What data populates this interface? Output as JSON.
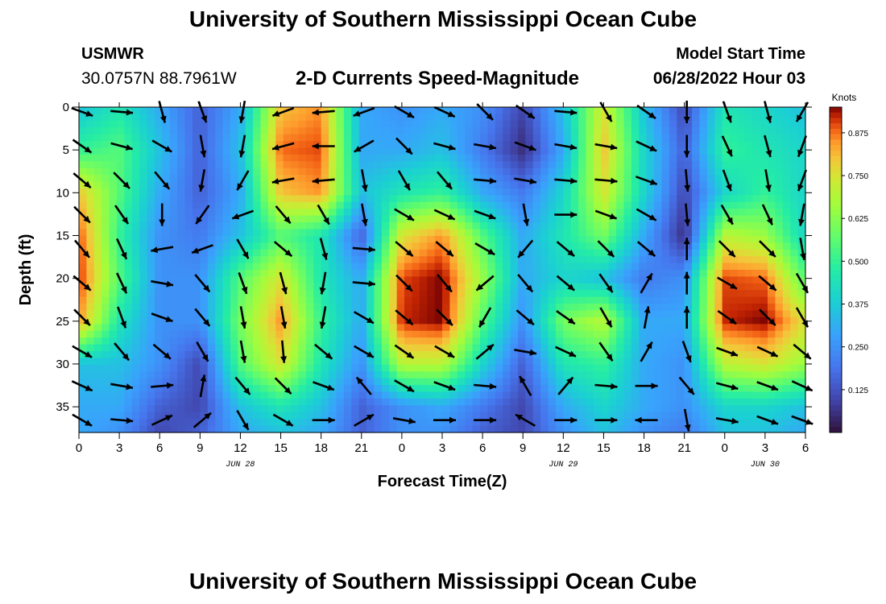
{
  "header": {
    "title": "University of Southern Mississippi Ocean Cube",
    "station": "USMWR",
    "coords": "30.0757N  88.7961W",
    "start_label": "Model Start Time",
    "start_value": "06/28/2022 Hour 03"
  },
  "footer": {
    "title": "University of Southern Mississippi Ocean Cube"
  },
  "chart_data": {
    "type": "heatmap",
    "title": "2-D Currents Speed-Magnitude",
    "xlabel": "Forecast Time(Z)",
    "ylabel": "Depth (ft)",
    "x_unit": "hours since 06/28/2022 00Z",
    "xlim": [
      0,
      54
    ],
    "ylim": [
      38,
      0
    ],
    "x_ticks": [
      0,
      3,
      6,
      9,
      12,
      15,
      18,
      21,
      24,
      27,
      30,
      33,
      36,
      39,
      42,
      45,
      48,
      51,
      54
    ],
    "x_tick_labels": [
      "0",
      "3",
      "6",
      "9",
      "12",
      "15",
      "18",
      "21",
      "0",
      "3",
      "6",
      "9",
      "12",
      "15",
      "18",
      "21",
      "0",
      "3",
      "6"
    ],
    "y_ticks": [
      0,
      5,
      10,
      15,
      20,
      25,
      30,
      35
    ],
    "y_tick_labels": [
      "0",
      "5",
      "10",
      "15",
      "20",
      "25",
      "30",
      "35"
    ],
    "date_labels": [
      {
        "text": "JUN 28",
        "x": 12
      },
      {
        "text": "JUN 29",
        "x": 36
      },
      {
        "text": "JUN 30",
        "x": 51
      }
    ],
    "colorbar": {
      "label": "Knots",
      "range": [
        0,
        0.95
      ],
      "ticks": [
        0.125,
        0.25,
        0.375,
        0.5,
        0.625,
        0.75,
        0.875
      ],
      "tick_labels": [
        "0.125",
        "0.250",
        "0.375",
        "0.500",
        "0.625",
        "0.750",
        "0.875"
      ]
    },
    "speed_field_knots": {
      "x": [
        0,
        3,
        6,
        9,
        12,
        15,
        18,
        21,
        24,
        27,
        30,
        33,
        36,
        39,
        42,
        45,
        48,
        51,
        54
      ],
      "depth": [
        0,
        5,
        10,
        15,
        20,
        25,
        30,
        35,
        38
      ],
      "values": [
        [
          0.35,
          0.45,
          0.3,
          0.15,
          0.3,
          0.8,
          0.85,
          0.3,
          0.25,
          0.3,
          0.25,
          0.1,
          0.35,
          0.75,
          0.35,
          0.1,
          0.45,
          0.4,
          0.35
        ],
        [
          0.5,
          0.55,
          0.35,
          0.15,
          0.35,
          0.88,
          0.9,
          0.3,
          0.3,
          0.35,
          0.2,
          0.05,
          0.3,
          0.8,
          0.4,
          0.15,
          0.5,
          0.45,
          0.4
        ],
        [
          0.8,
          0.55,
          0.3,
          0.15,
          0.3,
          0.8,
          0.85,
          0.35,
          0.45,
          0.5,
          0.3,
          0.2,
          0.4,
          0.75,
          0.4,
          0.1,
          0.4,
          0.5,
          0.4
        ],
        [
          0.9,
          0.5,
          0.25,
          0.2,
          0.35,
          0.55,
          0.45,
          0.15,
          0.75,
          0.85,
          0.55,
          0.3,
          0.45,
          0.6,
          0.3,
          0.05,
          0.7,
          0.65,
          0.4
        ],
        [
          0.92,
          0.55,
          0.25,
          0.25,
          0.55,
          0.75,
          0.45,
          0.3,
          0.9,
          0.95,
          0.65,
          0.3,
          0.4,
          0.35,
          0.2,
          0.25,
          0.9,
          0.88,
          0.55
        ],
        [
          0.85,
          0.45,
          0.25,
          0.25,
          0.6,
          0.85,
          0.5,
          0.3,
          0.92,
          0.95,
          0.55,
          0.25,
          0.6,
          0.7,
          0.3,
          0.3,
          0.92,
          0.95,
          0.75
        ],
        [
          0.35,
          0.35,
          0.25,
          0.1,
          0.55,
          0.75,
          0.45,
          0.25,
          0.7,
          0.7,
          0.4,
          0.15,
          0.45,
          0.5,
          0.3,
          0.25,
          0.7,
          0.75,
          0.65
        ],
        [
          0.3,
          0.3,
          0.15,
          0.1,
          0.35,
          0.45,
          0.35,
          0.15,
          0.25,
          0.3,
          0.2,
          0.1,
          0.3,
          0.4,
          0.3,
          0.25,
          0.4,
          0.4,
          0.35
        ],
        [
          0.3,
          0.25,
          0.1,
          0.15,
          0.3,
          0.35,
          0.3,
          0.15,
          0.25,
          0.25,
          0.15,
          0.1,
          0.25,
          0.35,
          0.25,
          0.2,
          0.35,
          0.35,
          0.3
        ]
      ]
    },
    "current_vectors": {
      "x": [
        0,
        3,
        6,
        9,
        12,
        15,
        18,
        21,
        24,
        27,
        30,
        33,
        36,
        39,
        42,
        45,
        48,
        51,
        54
      ],
      "depth": [
        0,
        4,
        8,
        12,
        16,
        20,
        24,
        28,
        32,
        36
      ],
      "direction_deg": [
        [
          -20,
          -5,
          -75,
          -70,
          -100,
          -160,
          -175,
          -160,
          -30,
          -25,
          -45,
          -35,
          -5,
          -60,
          -35,
          -90,
          -70,
          -75,
          -120
        ],
        [
          -35,
          -15,
          -30,
          -80,
          -100,
          -165,
          -180,
          -150,
          -45,
          -15,
          -10,
          -20,
          -10,
          -10,
          -25,
          -90,
          -65,
          -75,
          -110
        ],
        [
          -40,
          -45,
          -50,
          -100,
          -120,
          -170,
          -175,
          -80,
          -60,
          -50,
          -5,
          -10,
          -5,
          -5,
          -20,
          -85,
          -70,
          -80,
          -110
        ],
        [
          -45,
          -55,
          -90,
          -125,
          -160,
          -50,
          -60,
          -80,
          -30,
          -25,
          -20,
          -80,
          0,
          -20,
          -30,
          -85,
          -60,
          -65,
          -100
        ],
        [
          -50,
          -65,
          -170,
          -160,
          -60,
          -40,
          -75,
          -5,
          -40,
          -40,
          -30,
          -130,
          -40,
          -45,
          -40,
          90,
          -45,
          -45,
          -80
        ],
        [
          -40,
          -65,
          -10,
          -50,
          -70,
          -75,
          -100,
          -5,
          -45,
          -50,
          -140,
          -50,
          -40,
          -55,
          60,
          90,
          -30,
          -40,
          -60
        ],
        [
          -45,
          -70,
          -20,
          -50,
          -80,
          -80,
          -100,
          -30,
          -40,
          -45,
          -120,
          -40,
          -35,
          -60,
          80,
          90,
          -35,
          -45,
          -60
        ],
        [
          -30,
          -50,
          -40,
          -60,
          -80,
          -85,
          -40,
          -30,
          -35,
          -30,
          40,
          -10,
          -25,
          -55,
          60,
          -70,
          -20,
          -25,
          -40
        ],
        [
          -25,
          -10,
          5,
          80,
          -50,
          -45,
          -20,
          130,
          -30,
          -20,
          -5,
          120,
          50,
          -5,
          0,
          -50,
          -15,
          -20,
          -25
        ],
        [
          -30,
          -5,
          25,
          40,
          -60,
          -30,
          0,
          30,
          -10,
          0,
          0,
          150,
          0,
          0,
          180,
          -80,
          -10,
          -20,
          -20
        ]
      ]
    }
  }
}
